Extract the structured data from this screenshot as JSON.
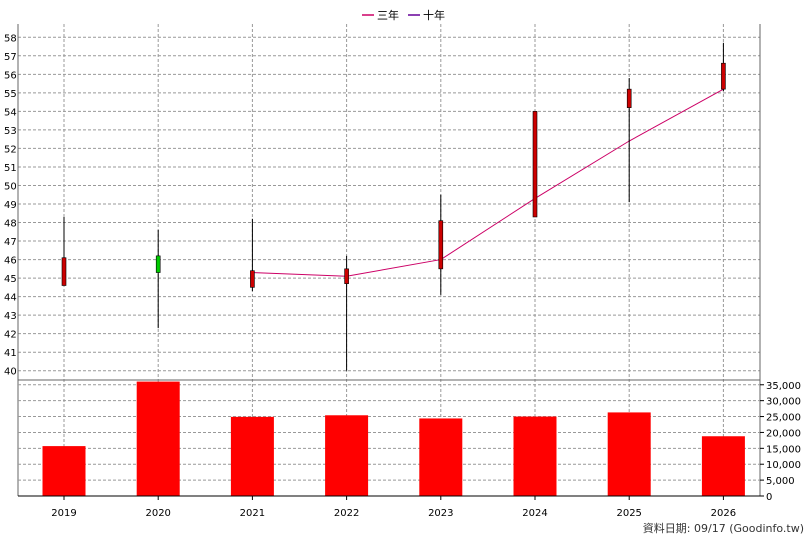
{
  "chart_data": [
    {
      "type": "candlestick",
      "title": "",
      "legend": {
        "placement": "top-center",
        "items": [
          {
            "name": "三年",
            "color": "#cc0066"
          },
          {
            "name": "十年",
            "color": "#660099"
          }
        ]
      },
      "categories": [
        "2019",
        "2020",
        "2021",
        "2022",
        "2023",
        "2024",
        "2025",
        "2026"
      ],
      "ohlc": [
        {
          "x": "2019",
          "open": 44.6,
          "high": 48.3,
          "low": 44.6,
          "close": 46.1
        },
        {
          "x": "2020",
          "open": 46.2,
          "high": 47.6,
          "low": 42.3,
          "close": 45.3
        },
        {
          "x": "2021",
          "open": 44.5,
          "high": 48.2,
          "low": 44.3,
          "close": 45.4
        },
        {
          "x": "2022",
          "open": 44.7,
          "high": 46.2,
          "low": 40.0,
          "close": 45.5
        },
        {
          "x": "2023",
          "open": 45.5,
          "high": 49.5,
          "low": 44.1,
          "close": 48.1
        },
        {
          "x": "2024",
          "open": 48.3,
          "high": 54.0,
          "low": 48.3,
          "close": 54.0
        },
        {
          "x": "2025",
          "open": 54.2,
          "high": 55.8,
          "low": 49.1,
          "close": 55.2
        },
        {
          "x": "2026",
          "open": 55.2,
          "high": 57.7,
          "low": 55.1,
          "close": 56.6
        }
      ],
      "colors": {
        "up": "#cc0000",
        "down": "#00cc00",
        "wick": "#000000"
      },
      "series": [
        {
          "name": "三年",
          "color": "#cc0066",
          "x": [
            "2021",
            "2022",
            "2023",
            "2024",
            "2025",
            "2026"
          ],
          "values": [
            45.3,
            45.1,
            46.0,
            49.3,
            52.4,
            55.2
          ]
        }
      ],
      "ylim": [
        40,
        58
      ],
      "yticks": [
        40,
        41,
        42,
        43,
        44,
        45,
        46,
        47,
        48,
        49,
        50,
        51,
        52,
        53,
        54,
        55,
        56,
        57,
        58
      ],
      "yaxis_side": "left",
      "grid": true
    },
    {
      "type": "bar",
      "categories": [
        "2019",
        "2020",
        "2021",
        "2022",
        "2023",
        "2024",
        "2025",
        "2026"
      ],
      "values": [
        15700,
        36000,
        24900,
        25400,
        24400,
        25000,
        26300,
        18800
      ],
      "color": "#ff0000",
      "ylim": [
        0,
        36000
      ],
      "yticks": [
        0,
        5000,
        10000,
        15000,
        20000,
        25000,
        30000,
        35000
      ],
      "ytick_labels": [
        "0",
        "5,000",
        "10,000",
        "15,000",
        "20,000",
        "25,000",
        "30,000",
        "35,000"
      ],
      "yaxis_side": "right",
      "grid": true
    }
  ],
  "xtick_labels": [
    "2019",
    "2020",
    "2021",
    "2022",
    "2023",
    "2024",
    "2025",
    "2026"
  ],
  "credit": "資料日期: 09/17  (Goodinfo.tw)"
}
